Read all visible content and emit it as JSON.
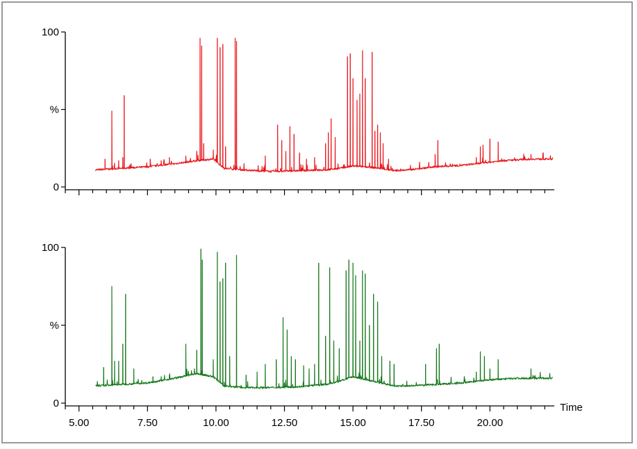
{
  "chart_data": [
    {
      "type": "line",
      "panel": "top",
      "color": "#e8161b",
      "x_range": [
        4.5,
        22.3
      ],
      "ylim": [
        0,
        100
      ],
      "ytick_labels": [
        "0",
        "%",
        "100"
      ],
      "baseline": [
        [
          5.6,
          11
        ],
        [
          6.5,
          12
        ],
        [
          7.5,
          13
        ],
        [
          8.5,
          15
        ],
        [
          9.3,
          17
        ],
        [
          9.9,
          18
        ],
        [
          10.3,
          12
        ],
        [
          11.0,
          11
        ],
        [
          12.0,
          10
        ],
        [
          13.0,
          10.5
        ],
        [
          14.0,
          11
        ],
        [
          14.5,
          12
        ],
        [
          15.0,
          13.5
        ],
        [
          15.5,
          13
        ],
        [
          16.0,
          12
        ],
        [
          16.5,
          10.5
        ],
        [
          17.0,
          11
        ],
        [
          17.5,
          12
        ],
        [
          18.0,
          13
        ],
        [
          18.5,
          13.5
        ],
        [
          19.0,
          14
        ],
        [
          19.5,
          15
        ],
        [
          20.0,
          16
        ],
        [
          20.5,
          17
        ],
        [
          21.0,
          17.5
        ],
        [
          21.5,
          18
        ],
        [
          22.3,
          18
        ]
      ],
      "peaks": [
        [
          5.95,
          18
        ],
        [
          6.2,
          49
        ],
        [
          6.45,
          17
        ],
        [
          6.6,
          19
        ],
        [
          6.65,
          59
        ],
        [
          6.9,
          15
        ],
        [
          7.6,
          18
        ],
        [
          8.0,
          17
        ],
        [
          8.3,
          19
        ],
        [
          8.9,
          20
        ],
        [
          9.3,
          23
        ],
        [
          9.42,
          96
        ],
        [
          9.48,
          91
        ],
        [
          9.55,
          28
        ],
        [
          9.9,
          24
        ],
        [
          10.05,
          96
        ],
        [
          10.15,
          90
        ],
        [
          10.25,
          92
        ],
        [
          10.35,
          26
        ],
        [
          10.7,
          96
        ],
        [
          10.75,
          94
        ],
        [
          11.8,
          20
        ],
        [
          12.25,
          40
        ],
        [
          12.4,
          30
        ],
        [
          12.55,
          23
        ],
        [
          12.7,
          39
        ],
        [
          12.85,
          34
        ],
        [
          13.05,
          22
        ],
        [
          13.3,
          18
        ],
        [
          13.6,
          19
        ],
        [
          14.0,
          28
        ],
        [
          14.1,
          35
        ],
        [
          14.2,
          44
        ],
        [
          14.35,
          32
        ],
        [
          14.8,
          84
        ],
        [
          14.9,
          86
        ],
        [
          15.0,
          70
        ],
        [
          15.15,
          56
        ],
        [
          15.25,
          60
        ],
        [
          15.35,
          88
        ],
        [
          15.45,
          70
        ],
        [
          15.7,
          87
        ],
        [
          15.8,
          36
        ],
        [
          15.9,
          40
        ],
        [
          16.0,
          35
        ],
        [
          16.1,
          28
        ],
        [
          16.3,
          18
        ],
        [
          17.1,
          14
        ],
        [
          18.0,
          21
        ],
        [
          18.1,
          30
        ],
        [
          18.55,
          15
        ],
        [
          18.9,
          14
        ],
        [
          19.5,
          19
        ],
        [
          19.65,
          26
        ],
        [
          19.75,
          27
        ],
        [
          20.0,
          31
        ],
        [
          20.3,
          29
        ],
        [
          21.5,
          21
        ]
      ]
    },
    {
      "type": "line",
      "panel": "bottom",
      "color": "#16781b",
      "x_range": [
        4.5,
        22.3
      ],
      "ylim": [
        0,
        100
      ],
      "ytick_labels": [
        "0",
        "%",
        "100"
      ],
      "xlabel": "Time",
      "xtick_labels": [
        "5.00",
        "7.50",
        "10.00",
        "12.50",
        "15.00",
        "17.50",
        "20.00"
      ],
      "xticks": [
        5.0,
        7.5,
        10.0,
        12.5,
        15.0,
        17.5,
        20.0
      ],
      "baseline": [
        [
          5.6,
          11
        ],
        [
          6.5,
          12
        ],
        [
          7.5,
          13
        ],
        [
          8.5,
          16
        ],
        [
          9.3,
          19
        ],
        [
          9.9,
          17
        ],
        [
          10.3,
          11
        ],
        [
          11.0,
          10
        ],
        [
          12.0,
          10
        ],
        [
          13.0,
          10.5
        ],
        [
          14.0,
          12
        ],
        [
          14.5,
          14
        ],
        [
          15.0,
          17
        ],
        [
          15.5,
          15
        ],
        [
          16.0,
          13
        ],
        [
          16.5,
          11
        ],
        [
          17.0,
          11
        ],
        [
          17.5,
          11.5
        ],
        [
          18.0,
          12
        ],
        [
          18.5,
          12.5
        ],
        [
          19.0,
          13
        ],
        [
          19.5,
          14
        ],
        [
          20.0,
          15
        ],
        [
          20.5,
          15.5
        ],
        [
          21.0,
          16
        ],
        [
          21.5,
          16
        ],
        [
          22.3,
          16
        ]
      ],
      "peaks": [
        [
          5.9,
          23
        ],
        [
          6.2,
          75
        ],
        [
          6.3,
          27
        ],
        [
          6.45,
          27
        ],
        [
          6.6,
          38
        ],
        [
          6.7,
          70
        ],
        [
          7.0,
          22
        ],
        [
          7.7,
          17
        ],
        [
          8.0,
          17
        ],
        [
          8.3,
          18
        ],
        [
          8.9,
          38
        ],
        [
          9.3,
          34
        ],
        [
          9.45,
          99
        ],
        [
          9.5,
          92
        ],
        [
          9.9,
          28
        ],
        [
          10.05,
          97
        ],
        [
          10.15,
          78
        ],
        [
          10.25,
          80
        ],
        [
          10.35,
          90
        ],
        [
          10.5,
          30
        ],
        [
          10.75,
          95
        ],
        [
          11.1,
          18
        ],
        [
          11.5,
          20
        ],
        [
          11.8,
          25
        ],
        [
          12.2,
          28
        ],
        [
          12.45,
          55
        ],
        [
          12.6,
          47
        ],
        [
          12.75,
          30
        ],
        [
          12.9,
          28
        ],
        [
          13.2,
          24
        ],
        [
          13.4,
          22
        ],
        [
          13.6,
          25
        ],
        [
          13.75,
          90
        ],
        [
          14.0,
          43
        ],
        [
          14.15,
          87
        ],
        [
          14.3,
          40
        ],
        [
          14.5,
          35
        ],
        [
          14.75,
          85
        ],
        [
          14.85,
          92
        ],
        [
          15.0,
          90
        ],
        [
          15.1,
          82
        ],
        [
          15.25,
          40
        ],
        [
          15.35,
          85
        ],
        [
          15.45,
          83
        ],
        [
          15.6,
          50
        ],
        [
          15.75,
          70
        ],
        [
          15.9,
          65
        ],
        [
          16.05,
          30
        ],
        [
          16.35,
          27
        ],
        [
          16.5,
          25
        ],
        [
          17.65,
          25
        ],
        [
          18.05,
          35
        ],
        [
          18.15,
          38
        ],
        [
          18.8,
          12
        ],
        [
          19.5,
          20
        ],
        [
          19.65,
          33
        ],
        [
          19.8,
          30
        ],
        [
          20.0,
          22
        ],
        [
          20.3,
          28
        ],
        [
          21.5,
          22
        ]
      ]
    }
  ]
}
